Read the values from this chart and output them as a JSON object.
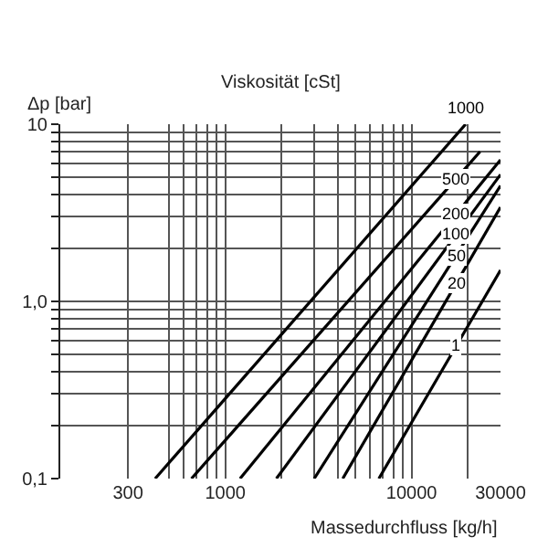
{
  "chart_data": {
    "type": "line",
    "title": "Viskosität [cSt]",
    "xlabel": "Massedurchfluss [kg/h]",
    "ylabel": "Δp [bar]",
    "log": "xy",
    "grid": true,
    "legend": false,
    "marker": "none",
    "line_style": "solid",
    "xlim": [
      130,
      30000
    ],
    "ylim": [
      0.1,
      10
    ],
    "xticks": [
      {
        "value": 300,
        "label": "300"
      },
      {
        "value": 500,
        "label": null
      },
      {
        "value": 600,
        "label": null
      },
      {
        "value": 700,
        "label": null
      },
      {
        "value": 800,
        "label": null
      },
      {
        "value": 900,
        "label": null
      },
      {
        "value": 1000,
        "label": "1000"
      },
      {
        "value": 2000,
        "label": null
      },
      {
        "value": 3000,
        "label": null
      },
      {
        "value": 4000,
        "label": null
      },
      {
        "value": 5000,
        "label": null
      },
      {
        "value": 6000,
        "label": null
      },
      {
        "value": 7000,
        "label": null
      },
      {
        "value": 8000,
        "label": null
      },
      {
        "value": 9000,
        "label": null
      },
      {
        "value": 10000,
        "label": "10000"
      },
      {
        "value": 20000,
        "label": null
      },
      {
        "value": 30000,
        "label": "30000"
      }
    ],
    "yticks": [
      {
        "value": 0.1,
        "label": "0,1"
      },
      {
        "value": 0.2,
        "label": null
      },
      {
        "value": 0.3,
        "label": null
      },
      {
        "value": 0.4,
        "label": null
      },
      {
        "value": 0.5,
        "label": null
      },
      {
        "value": 0.6,
        "label": null
      },
      {
        "value": 0.7,
        "label": null
      },
      {
        "value": 0.8,
        "label": null
      },
      {
        "value": 0.9,
        "label": null
      },
      {
        "value": 1,
        "label": "1,0"
      },
      {
        "value": 2,
        "label": null
      },
      {
        "value": 3,
        "label": null
      },
      {
        "value": 4,
        "label": null
      },
      {
        "value": 5,
        "label": null
      },
      {
        "value": 6,
        "label": null
      },
      {
        "value": 7,
        "label": null
      },
      {
        "value": 8,
        "label": null
      },
      {
        "value": 9,
        "label": null
      },
      {
        "value": 10,
        "label": "10"
      }
    ],
    "series": [
      {
        "name": "1000",
        "color": "#000000",
        "x": [
          420,
          19500
        ],
        "values": [
          0.1,
          10
        ]
      },
      {
        "name": "500",
        "color": "#000000",
        "x": [
          658,
          23300
        ],
        "values": [
          0.1,
          7.0
        ]
      },
      {
        "name": "200",
        "color": "#000000",
        "x": [
          1200,
          30000
        ],
        "values": [
          0.1,
          6.3
        ]
      },
      {
        "name": "100",
        "color": "#000000",
        "x": [
          1880,
          30000
        ],
        "values": [
          0.1,
          5.2
        ]
      },
      {
        "name": "50",
        "color": "#000000",
        "x": [
          3000,
          30000
        ],
        "values": [
          0.1,
          4.5
        ]
      },
      {
        "name": "20",
        "color": "#000000",
        "x": [
          4270,
          30000
        ],
        "values": [
          0.1,
          3.4
        ]
      },
      {
        "name": "1",
        "color": "#000000",
        "x": [
          6670,
          30000
        ],
        "values": [
          0.1,
          1.5
        ]
      }
    ]
  }
}
